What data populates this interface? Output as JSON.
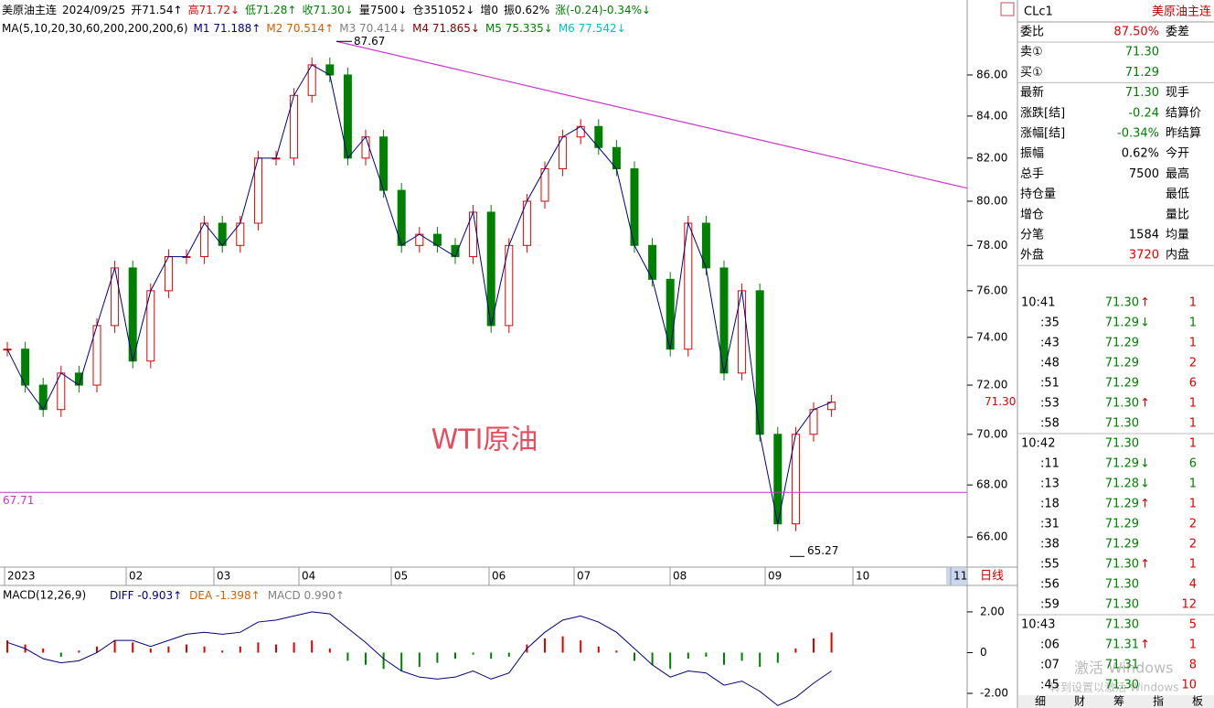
{
  "header": {
    "line1": [
      {
        "text": "美原油主连",
        "color": "#000"
      },
      {
        "text": "2024/09/25",
        "color": "#000"
      },
      {
        "text": "开71.54↑",
        "color": "#000"
      },
      {
        "text": "高71.72↓",
        "color": "#e00000"
      },
      {
        "text": "低71.28↑",
        "color": "#008000"
      },
      {
        "text": "收71.30↓",
        "color": "#008000"
      },
      {
        "text": "量7500↓",
        "color": "#000"
      },
      {
        "text": "仓351052↓",
        "color": "#000"
      },
      {
        "text": "增0",
        "color": "#000"
      },
      {
        "text": "振0.62%",
        "color": "#000"
      },
      {
        "text": "涨(-0.24)-0.34%↓",
        "color": "#008000"
      }
    ],
    "line2": [
      {
        "text": "MA(5,10,20,30,60,200,200,200,6)",
        "color": "#000"
      },
      {
        "text": "M1 71.188↑",
        "color": "#000080"
      },
      {
        "text": "M2 70.514↑",
        "color": "#d06000"
      },
      {
        "text": "M3 70.414↓",
        "color": "#808080"
      },
      {
        "text": "M4 71.865↓",
        "color": "#800000"
      },
      {
        "text": "M5 75.335↓",
        "color": "#008000"
      },
      {
        "text": "M6 77.542↓",
        "color": "#00c0c0"
      }
    ]
  },
  "chart_data": {
    "type": "candlestick",
    "log_scale": true,
    "ylim": [
      64.94,
      89.68
    ],
    "yticks": [
      {
        "value": 86,
        "label": "86.00"
      },
      {
        "value": 84,
        "label": "84.00"
      },
      {
        "value": 82,
        "label": "82.00"
      },
      {
        "value": 80,
        "label": "80.00"
      },
      {
        "value": 78,
        "label": "78.00"
      },
      {
        "value": 76,
        "label": "76.00"
      },
      {
        "value": 74,
        "label": "74.00"
      },
      {
        "value": 72,
        "label": "72.00"
      },
      {
        "value": 70,
        "label": "70.00"
      },
      {
        "value": 68,
        "label": "68.00"
      },
      {
        "value": 66,
        "label": "66.00"
      }
    ],
    "months": [
      "2023",
      "02",
      "03",
      "04",
      "05",
      "06",
      "07",
      "08",
      "09",
      "10",
      "11"
    ],
    "closes": [
      73.5,
      72,
      71,
      72.5,
      72,
      74.5,
      77,
      73,
      76,
      77.5,
      77.5,
      79,
      78,
      79,
      82,
      82,
      85,
      86.5,
      86,
      82,
      83,
      80.5,
      78,
      78.5,
      78,
      77.5,
      79.5,
      74.5,
      78,
      80,
      81.5,
      83,
      83.5,
      82.5,
      81.5,
      78,
      76.5,
      73.5,
      79,
      77,
      72.5,
      76,
      70,
      66.5,
      70,
      71,
      71.3
    ],
    "up_color": "#e00000",
    "down_color": "#008000",
    "high_label": {
      "value": 87.67,
      "label": "87.67"
    },
    "low_label": {
      "value": 65.27,
      "label": "65.27"
    },
    "level_line": {
      "value": 67.71,
      "label": "67.71",
      "color": "#cc33cc"
    },
    "trendline": {
      "values": [
        87.67,
        80.6
      ],
      "color": "#cc33cc"
    },
    "last_price": {
      "value": 71.3,
      "label": "71.30"
    },
    "watermark": "WTI原油",
    "period": "日线"
  },
  "macd": {
    "title": "MACD(12,26,9)",
    "legend": [
      {
        "text": "DIFF -0.903↑",
        "color": "#000080"
      },
      {
        "text": "DEA -1.398↑",
        "color": "#d06000"
      },
      {
        "text": "MACD 0.990↑",
        "color": "#808080"
      }
    ],
    "ylim": [
      -2.63,
      3.21
    ],
    "yticks": [
      {
        "value": 2,
        "label": "2.00"
      },
      0,
      {
        "value": -2,
        "label": "-2.00"
      }
    ],
    "histogram": [
      0.6,
      0.4,
      0.2,
      -0.2,
      0.1,
      0.3,
      0.6,
      0.5,
      0.2,
      0.3,
      0.4,
      0.3,
      0.1,
      0.3,
      0.5,
      0.4,
      0.5,
      0.6,
      0.2,
      -0.4,
      -0.6,
      -0.8,
      -0.9,
      -0.7,
      -0.5,
      -0.3,
      -0.1,
      -0.3,
      -0.2,
      0.4,
      0.7,
      0.8,
      0.6,
      0.3,
      0.1,
      -0.4,
      -0.6,
      -0.8,
      -0.3,
      -0.2,
      -0.6,
      -0.4,
      -0.7,
      -0.5,
      0.2,
      0.7,
      0.99
    ],
    "diff": [
      0.5,
      0.2,
      -0.3,
      -0.5,
      -0.4,
      0,
      0.6,
      0.6,
      0.3,
      0.6,
      0.9,
      1.0,
      0.9,
      1.0,
      1.5,
      1.6,
      1.8,
      2.0,
      1.9,
      1.2,
      0.5,
      -0.3,
      -0.9,
      -1.2,
      -1.3,
      -1.2,
      -0.9,
      -1.3,
      -1.0,
      0.2,
      1.0,
      1.6,
      1.8,
      1.5,
      1.0,
      0.2,
      -0.6,
      -1.2,
      -0.9,
      -1.0,
      -1.6,
      -1.4,
      -1.9,
      -2.6,
      -2.2,
      -1.5,
      -0.9
    ]
  },
  "panel": {
    "code": "CLc1",
    "name": "美原油主连",
    "quote_rows": [
      {
        "label": "委比",
        "value": "87.50%",
        "color": "#e00000",
        "label2": "委差"
      },
      {
        "label": "卖①",
        "value": "71.30",
        "color": "#008000"
      },
      {
        "label": "买①",
        "value": "71.29",
        "color": "#008000"
      },
      {
        "label": "最新",
        "value": "71.30",
        "color": "#008000",
        "label2": "现手"
      },
      {
        "label": "涨跌[结]",
        "value": "-0.24",
        "color": "#008000",
        "label2": "结算价"
      },
      {
        "label": "涨幅[结]",
        "value": "-0.34%",
        "color": "#008000",
        "label2": "昨结算"
      },
      {
        "label": "振幅",
        "value": "0.62%",
        "color": "#000",
        "label2": "今开"
      },
      {
        "label": "总手",
        "value": "7500",
        "color": "#000",
        "label2": "最高"
      },
      {
        "label": "持仓量",
        "label2": "最低"
      },
      {
        "label": "增仓",
        "label2": "量比"
      },
      {
        "label": "分笔",
        "value": "1584",
        "color": "#000",
        "label2": "均量"
      },
      {
        "label": "外盘",
        "value": "3720",
        "color": "#e00000",
        "label2": "内盘"
      }
    ],
    "trades": [
      {
        "time": "10:41",
        "price": "71.30",
        "arrow": "↑",
        "volume": "1",
        "vcolor": "#e00000"
      },
      {
        "time": ":35",
        "price": "71.29",
        "arrow": "↓",
        "volume": "1",
        "vcolor": "#008000"
      },
      {
        "time": ":43",
        "price": "71.29",
        "volume": "1",
        "vcolor": "#e00000"
      },
      {
        "time": ":48",
        "price": "71.29",
        "volume": "2",
        "vcolor": "#e00000"
      },
      {
        "time": ":51",
        "price": "71.29",
        "volume": "6",
        "vcolor": "#e00000"
      },
      {
        "time": ":53",
        "price": "71.30",
        "arrow": "↑",
        "volume": "1",
        "vcolor": "#e00000"
      },
      {
        "time": ":58",
        "price": "71.30",
        "volume": "1",
        "vcolor": "#e00000"
      },
      {
        "time": "10:42",
        "price": "71.30",
        "volume": "1",
        "vcolor": "#e00000"
      },
      {
        "time": ":11",
        "price": "71.29",
        "arrow": "↓",
        "volume": "6",
        "vcolor": "#008000"
      },
      {
        "time": ":13",
        "price": "71.28",
        "arrow": "↓",
        "volume": "1",
        "vcolor": "#008000"
      },
      {
        "time": ":18",
        "price": "71.29",
        "arrow": "↑",
        "volume": "1",
        "vcolor": "#e00000"
      },
      {
        "time": ":31",
        "price": "71.29",
        "volume": "2",
        "vcolor": "#e00000"
      },
      {
        "time": ":38",
        "price": "71.29",
        "volume": "2",
        "vcolor": "#e00000"
      },
      {
        "time": ":55",
        "price": "71.30",
        "arrow": "↑",
        "volume": "1",
        "vcolor": "#e00000"
      },
      {
        "time": ":56",
        "price": "71.30",
        "volume": "4",
        "vcolor": "#e00000"
      },
      {
        "time": ":59",
        "price": "71.30",
        "volume": "12",
        "vcolor": "#e00000"
      },
      {
        "time": "10:43",
        "price": "71.30",
        "volume": "5",
        "vcolor": "#e00000"
      },
      {
        "time": ":06",
        "price": "71.31",
        "arrow": "↑",
        "volume": "1",
        "vcolor": "#e00000"
      },
      {
        "time": ":07",
        "price": "71.31",
        "volume": "8",
        "vcolor": "#e00000"
      },
      {
        "time": ":45",
        "price": "71.30",
        "volume": "10",
        "vcolor": "#e00000"
      }
    ],
    "tabs": [
      "细",
      "财",
      "筹",
      "指",
      "板"
    ]
  },
  "os_watermark": {
    "line1": "激活 Windows",
    "line2": "转到设置以激活 Windows"
  }
}
